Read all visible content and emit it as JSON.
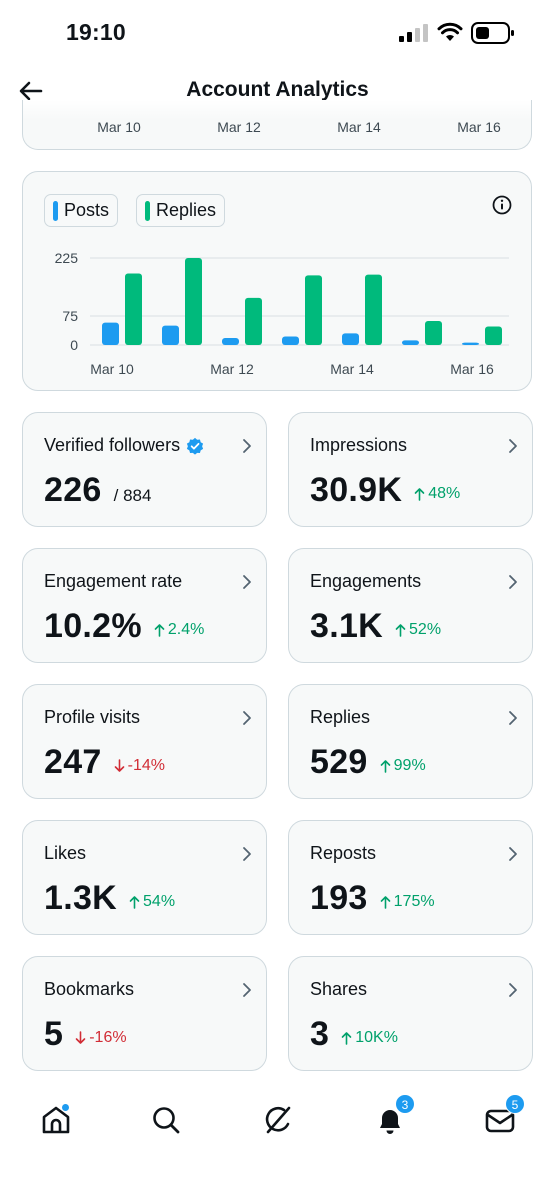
{
  "status_bar": {
    "time": "19:10",
    "signal_icon": "cellular-signal-icon",
    "wifi_icon": "wifi-icon",
    "battery_icon": "battery-icon"
  },
  "header": {
    "title": "Account Analytics",
    "back_icon": "arrow-left-icon"
  },
  "previous_chart": {
    "ticks": [
      "Mar 10",
      "Mar 12",
      "Mar 14",
      "Mar 16"
    ]
  },
  "chart": {
    "legend": [
      {
        "label": "Posts",
        "color": "#1d9bf0"
      },
      {
        "label": "Replies",
        "color": "#00ba7c"
      }
    ],
    "info_icon": "info-icon"
  },
  "chart_data": {
    "type": "bar",
    "categories": [
      "Mar 10",
      "Mar 11",
      "Mar 12",
      "Mar 13",
      "Mar 14",
      "Mar 15",
      "Mar 16"
    ],
    "x_tick_labels": [
      "Mar 10",
      "Mar 12",
      "Mar 14",
      "Mar 16"
    ],
    "y_ticks": [
      0,
      75,
      225
    ],
    "ylim": [
      0,
      225
    ],
    "grid": true,
    "legend_position": "top-left",
    "series": [
      {
        "name": "Posts",
        "color": "#1d9bf0",
        "values": [
          58,
          50,
          18,
          22,
          30,
          12,
          6
        ]
      },
      {
        "name": "Replies",
        "color": "#00ba7c",
        "values": [
          185,
          225,
          122,
          180,
          182,
          62,
          48
        ]
      }
    ]
  },
  "stats": [
    {
      "label": "Verified followers",
      "value": "226",
      "sub": "/ 884",
      "change": "",
      "direction": "",
      "verified": true
    },
    {
      "label": "Impressions",
      "value": "30.9K",
      "sub": "",
      "change": "48%",
      "direction": "up"
    },
    {
      "label": "Engagement rate",
      "value": "10.2%",
      "sub": "",
      "change": "2.4%",
      "direction": "up"
    },
    {
      "label": "Engagements",
      "value": "3.1K",
      "sub": "",
      "change": "52%",
      "direction": "up"
    },
    {
      "label": "Profile visits",
      "value": "247",
      "sub": "",
      "change": "-14%",
      "direction": "down"
    },
    {
      "label": "Replies",
      "value": "529",
      "sub": "",
      "change": "99%",
      "direction": "up"
    },
    {
      "label": "Likes",
      "value": "1.3K",
      "sub": "",
      "change": "54%",
      "direction": "up"
    },
    {
      "label": "Reposts",
      "value": "193",
      "sub": "",
      "change": "175%",
      "direction": "up"
    },
    {
      "label": "Bookmarks",
      "value": "5",
      "sub": "",
      "change": "-16%",
      "direction": "down"
    },
    {
      "label": "Shares",
      "value": "3",
      "sub": "",
      "change": "10K%",
      "direction": "up"
    }
  ],
  "bottom_nav": {
    "items": [
      {
        "icon": "home-icon",
        "badge": "",
        "dot": true
      },
      {
        "icon": "search-icon",
        "badge": ""
      },
      {
        "icon": "grok-icon",
        "badge": ""
      },
      {
        "icon": "bell-icon",
        "badge": "3"
      },
      {
        "icon": "mail-icon",
        "badge": "5"
      }
    ]
  },
  "colors": {
    "up": "#00a16b",
    "down": "#d12d36",
    "accent": "#1d9bf0",
    "card_bg": "#f7f9f9",
    "card_border": "#cfd9de"
  }
}
